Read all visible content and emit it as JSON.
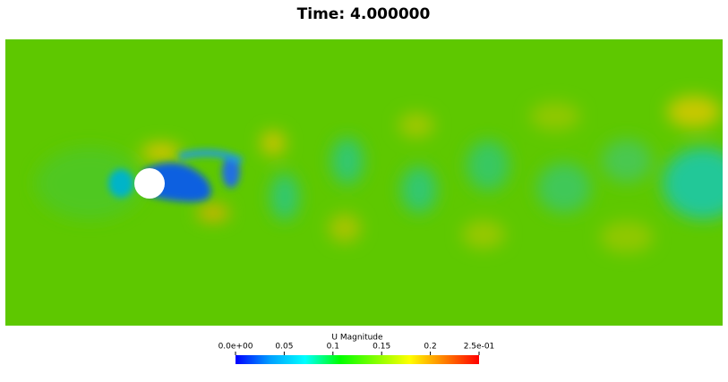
{
  "title": "Time: 4.000000",
  "colorbar": {
    "title": "U Magnitude",
    "range": [
      0,
      0.25
    ],
    "ticks": [
      {
        "value": 0,
        "label": "0.0e+00"
      },
      0.05,
      0.1,
      0.15,
      0.2,
      {
        "value": 0.25,
        "label": "2.5e-01"
      }
    ],
    "colors": [
      "#0000ff",
      "#00a0ff",
      "#00ffff",
      "#00ff00",
      "#80ff00",
      "#ffff00",
      "#ff8000",
      "#ff0000"
    ]
  }
}
